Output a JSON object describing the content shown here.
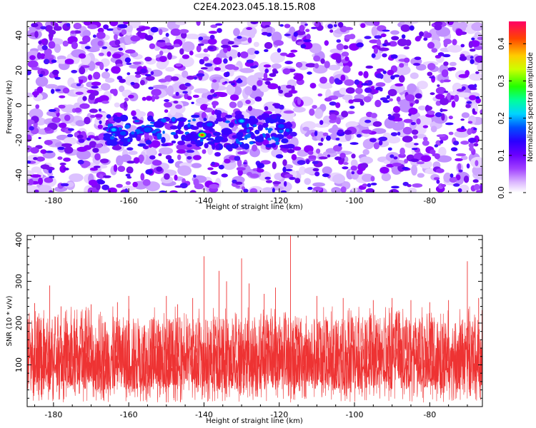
{
  "title": "C2E4.2023.045.18.15.R08",
  "chart_data": [
    {
      "type": "heatmap",
      "xlabel": "Height of straight line (km)",
      "ylabel": "Frequency (Hz)",
      "xlim": [
        -187,
        -66
      ],
      "ylim": [
        -50,
        48
      ],
      "x_ticks": [
        "-180",
        "-160",
        "-140",
        "-120",
        "-100",
        "-80"
      ],
      "y_ticks": [
        "40",
        "20",
        "0",
        "-20",
        "-40"
      ],
      "colorbar": {
        "label": "Normalized spectral amplitude",
        "range": [
          0.0,
          0.46
        ],
        "ticks": [
          "0.0",
          "0.1",
          "0.2",
          "0.3",
          "0.4"
        ],
        "colors": [
          "#ffffff",
          "#cc88ff",
          "#8a00ff",
          "#3a00ff",
          "#0044ff",
          "#00ccff",
          "#00ff90",
          "#33ff00",
          "#ccff00",
          "#ffcc00",
          "#ff4400",
          "#ff0066"
        ]
      },
      "peak_band": {
        "frequency_center": -15,
        "x_range": [
          -166,
          -117
        ],
        "strongest": {
          "x": -140.5,
          "frequency": -17,
          "amplitude": 0.43
        },
        "features": [
          {
            "x": -164,
            "frequency": -14,
            "amplitude": 0.2
          },
          {
            "x": -161.5,
            "frequency": -16,
            "amplitude": 0.15
          },
          {
            "x": -155,
            "frequency": -14,
            "amplitude": 0.18
          },
          {
            "x": -152,
            "frequency": -11,
            "amplitude": 0.14
          },
          {
            "x": -143.5,
            "frequency": -18,
            "amplitude": 0.14
          },
          {
            "x": -138.5,
            "frequency": -11,
            "amplitude": 0.17
          },
          {
            "x": -134,
            "frequency": -15,
            "amplitude": 0.12
          },
          {
            "x": -130,
            "frequency": -9,
            "amplitude": 0.22
          },
          {
            "x": -127,
            "frequency": -9,
            "amplitude": 0.14
          },
          {
            "x": -119.5,
            "frequency": -12,
            "amplitude": 0.16
          }
        ]
      }
    },
    {
      "type": "line",
      "xlabel": "Height of straight line (km)",
      "ylabel": "SNR (10 * v/v)",
      "xlim": [
        -187,
        -66
      ],
      "ylim": [
        0,
        410
      ],
      "x_ticks": [
        "-180",
        "-160",
        "-140",
        "-120",
        "-100",
        "-80"
      ],
      "y_ticks": [
        "400",
        "300",
        "200",
        "100"
      ],
      "color": "#ee3333",
      "typical_range": [
        10,
        215
      ],
      "peaks": [
        {
          "x": -185,
          "y": 248
        },
        {
          "x": -181,
          "y": 290
        },
        {
          "x": -178,
          "y": 240
        },
        {
          "x": -170,
          "y": 245
        },
        {
          "x": -163,
          "y": 250
        },
        {
          "x": -160,
          "y": 265
        },
        {
          "x": -150,
          "y": 265
        },
        {
          "x": -147,
          "y": 245
        },
        {
          "x": -143,
          "y": 260
        },
        {
          "x": -140,
          "y": 360
        },
        {
          "x": -136,
          "y": 325
        },
        {
          "x": -134,
          "y": 300
        },
        {
          "x": -130,
          "y": 355
        },
        {
          "x": -128,
          "y": 295
        },
        {
          "x": -124,
          "y": 270
        },
        {
          "x": -121,
          "y": 285
        },
        {
          "x": -117,
          "y": 410
        },
        {
          "x": -110,
          "y": 265
        },
        {
          "x": -103,
          "y": 260
        },
        {
          "x": -95,
          "y": 255
        },
        {
          "x": -90,
          "y": 260
        },
        {
          "x": -85,
          "y": 255
        },
        {
          "x": -80,
          "y": 250
        },
        {
          "x": -75,
          "y": 255
        },
        {
          "x": -70,
          "y": 348
        },
        {
          "x": -67,
          "y": 260
        }
      ]
    }
  ]
}
